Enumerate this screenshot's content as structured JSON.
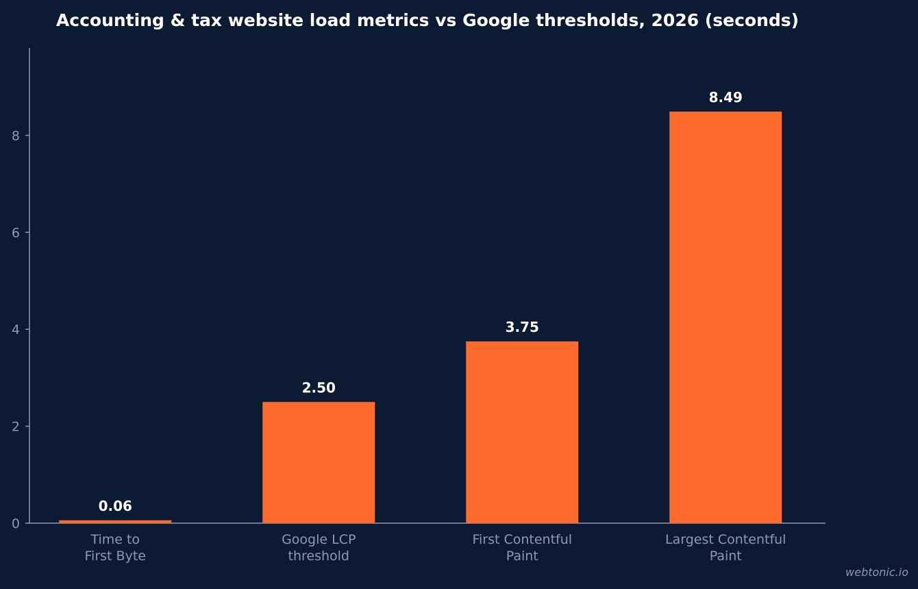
{
  "chart_data": {
    "type": "bar",
    "title": "Accounting & tax website load metrics vs Google thresholds, 2026 (seconds)",
    "xlabel": "",
    "ylabel": "",
    "categories": [
      [
        "Time to",
        "First Byte"
      ],
      [
        "Google LCP",
        "threshold"
      ],
      [
        "First Contentful",
        "Paint"
      ],
      [
        "Largest Contentful",
        "Paint"
      ]
    ],
    "values": [
      0.06,
      2.5,
      3.75,
      8.49
    ],
    "data_labels": [
      "0.06",
      "2.50",
      "3.75",
      "8.49"
    ],
    "ylim": [
      0,
      9.8
    ],
    "yticks": [
      0,
      2,
      4,
      6,
      8
    ],
    "grid": false,
    "bar_color": "#ff6b2c",
    "axis_color": "#8e9ab0",
    "background": "#0c1b33"
  },
  "watermark": "webtonic.io"
}
